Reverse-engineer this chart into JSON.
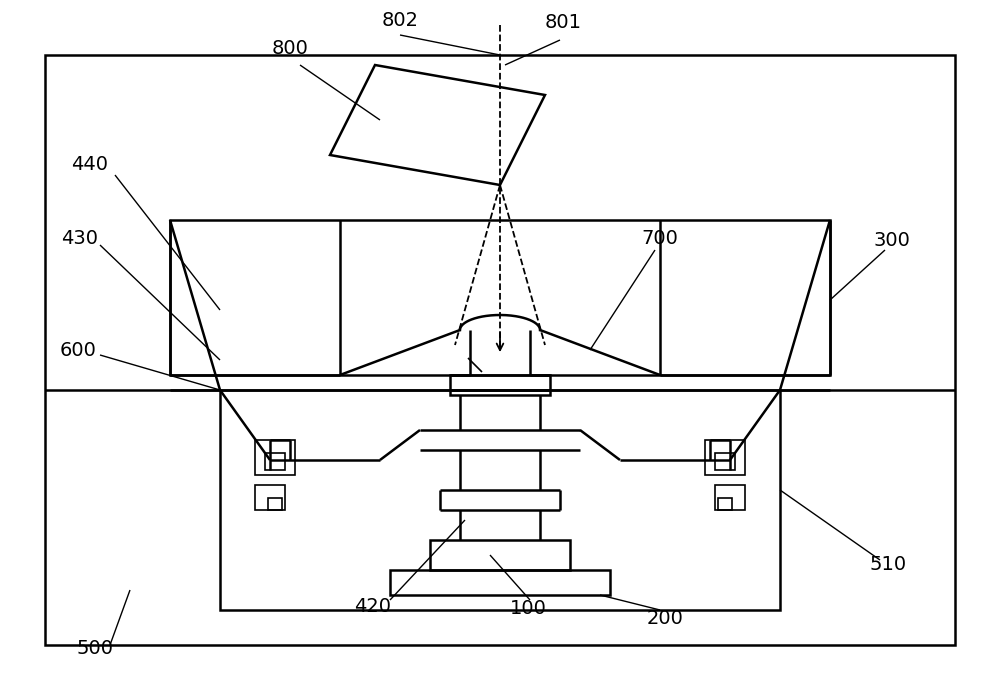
{
  "bg_color": "#ffffff",
  "line_color": "#000000",
  "lw": 1.8,
  "lw_thin": 1.2,
  "lw_ref": 1.0,
  "fig_width": 10.0,
  "fig_height": 6.82
}
